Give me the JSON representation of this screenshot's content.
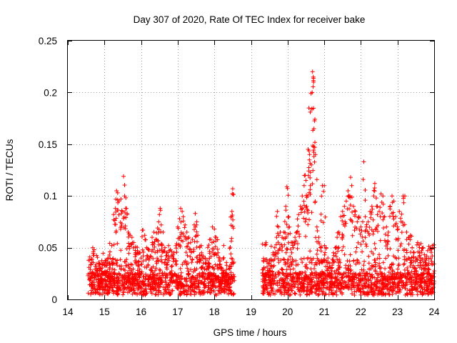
{
  "chart_data": {
    "type": "scatter",
    "title": "Day 307 of 2020, Rate Of TEC Index for receiver bake",
    "xlabel": "GPS time / hours",
    "ylabel": "ROTI / TECUs",
    "xlim": [
      14,
      24
    ],
    "ylim": [
      0,
      0.25
    ],
    "x_ticks": [
      14,
      15,
      16,
      17,
      18,
      19,
      20,
      21,
      22,
      23,
      24
    ],
    "y_ticks": [
      0,
      0.05,
      0.1,
      0.15,
      0.2,
      0.25
    ],
    "x_tick_labels": [
      "14",
      "15",
      "16",
      "17",
      "18",
      "19",
      "20",
      "21",
      "22",
      "23",
      "24"
    ],
    "y_tick_labels": [
      "0",
      "0.05",
      "0.1",
      "0.15",
      "0.2",
      "0.25"
    ],
    "grid": true,
    "marker": "+",
    "color": "#ff0000",
    "series": [
      {
        "name": "ROTI",
        "segments": [
          [
            14.55,
            18.55
          ],
          [
            19.3,
            24.0
          ]
        ],
        "points": [
          [
            14.6,
            0.041
          ],
          [
            14.65,
            0.039
          ],
          [
            14.68,
            0.05
          ],
          [
            14.72,
            0.048
          ],
          [
            14.75,
            0.032
          ],
          [
            14.8,
            0.028
          ],
          [
            14.85,
            0.036
          ],
          [
            14.9,
            0.03
          ],
          [
            14.95,
            0.034
          ],
          [
            15.0,
            0.033
          ],
          [
            15.05,
            0.038
          ],
          [
            15.1,
            0.04
          ],
          [
            15.15,
            0.046
          ],
          [
            15.2,
            0.052
          ],
          [
            15.25,
            0.082
          ],
          [
            15.3,
            0.088
          ],
          [
            15.33,
            0.105
          ],
          [
            15.36,
            0.103
          ],
          [
            15.4,
            0.095
          ],
          [
            15.45,
            0.097
          ],
          [
            15.48,
            0.085
          ],
          [
            15.52,
            0.119
          ],
          [
            15.55,
            0.1
          ],
          [
            15.58,
            0.088
          ],
          [
            15.62,
            0.083
          ],
          [
            15.65,
            0.065
          ],
          [
            15.7,
            0.062
          ],
          [
            15.75,
            0.06
          ],
          [
            15.8,
            0.055
          ],
          [
            15.85,
            0.051
          ],
          [
            15.9,
            0.047
          ],
          [
            15.95,
            0.045
          ],
          [
            16.0,
            0.04
          ],
          [
            16.05,
            0.067
          ],
          [
            16.1,
            0.062
          ],
          [
            16.15,
            0.05
          ],
          [
            16.2,
            0.048
          ],
          [
            16.25,
            0.042
          ],
          [
            16.3,
            0.06
          ],
          [
            16.35,
            0.065
          ],
          [
            16.4,
            0.058
          ],
          [
            16.45,
            0.069
          ],
          [
            16.5,
            0.082
          ],
          [
            16.52,
            0.088
          ],
          [
            16.55,
            0.072
          ],
          [
            16.6,
            0.065
          ],
          [
            16.65,
            0.05
          ],
          [
            16.7,
            0.045
          ],
          [
            16.75,
            0.052
          ],
          [
            16.8,
            0.048
          ],
          [
            16.85,
            0.042
          ],
          [
            16.9,
            0.045
          ],
          [
            16.95,
            0.052
          ],
          [
            17.0,
            0.07
          ],
          [
            17.05,
            0.078
          ],
          [
            17.08,
            0.088
          ],
          [
            17.12,
            0.085
          ],
          [
            17.15,
            0.08
          ],
          [
            17.2,
            0.072
          ],
          [
            17.25,
            0.065
          ],
          [
            17.3,
            0.06
          ],
          [
            17.35,
            0.055
          ],
          [
            17.4,
            0.058
          ],
          [
            17.45,
            0.072
          ],
          [
            17.48,
            0.083
          ],
          [
            17.52,
            0.075
          ],
          [
            17.55,
            0.062
          ],
          [
            17.6,
            0.05
          ],
          [
            17.65,
            0.045
          ],
          [
            17.7,
            0.042
          ],
          [
            17.75,
            0.04
          ],
          [
            17.8,
            0.038
          ],
          [
            17.85,
            0.035
          ],
          [
            17.9,
            0.058
          ],
          [
            17.95,
            0.07
          ],
          [
            18.0,
            0.068
          ],
          [
            18.05,
            0.06
          ],
          [
            18.1,
            0.045
          ],
          [
            18.15,
            0.038
          ],
          [
            18.2,
            0.03
          ],
          [
            18.25,
            0.028
          ],
          [
            18.3,
            0.026
          ],
          [
            18.35,
            0.024
          ],
          [
            18.4,
            0.022
          ],
          [
            18.45,
            0.044
          ],
          [
            18.47,
            0.059
          ],
          [
            18.48,
            0.085
          ],
          [
            18.49,
            0.102
          ],
          [
            18.5,
            0.107
          ],
          [
            19.35,
            0.03
          ],
          [
            19.4,
            0.025
          ],
          [
            19.45,
            0.028
          ],
          [
            19.5,
            0.035
          ],
          [
            19.55,
            0.038
          ],
          [
            19.6,
            0.045
          ],
          [
            19.65,
            0.05
          ],
          [
            19.7,
            0.06
          ],
          [
            19.72,
            0.085
          ],
          [
            19.75,
            0.07
          ],
          [
            19.8,
            0.065
          ],
          [
            19.85,
            0.06
          ],
          [
            19.9,
            0.065
          ],
          [
            19.95,
            0.09
          ],
          [
            19.98,
            0.109
          ],
          [
            20.02,
            0.08
          ],
          [
            20.05,
            0.07
          ],
          [
            20.1,
            0.055
          ],
          [
            20.15,
            0.05
          ],
          [
            20.2,
            0.06
          ],
          [
            20.25,
            0.065
          ],
          [
            20.3,
            0.082
          ],
          [
            20.35,
            0.09
          ],
          [
            20.4,
            0.1
          ],
          [
            20.45,
            0.11
          ],
          [
            20.48,
            0.12
          ],
          [
            20.5,
            0.115
          ],
          [
            20.52,
            0.09
          ],
          [
            20.55,
            0.1
          ],
          [
            20.56,
            0.145
          ],
          [
            20.58,
            0.185
          ],
          [
            20.6,
            0.14
          ],
          [
            20.62,
            0.11
          ],
          [
            20.65,
            0.13
          ],
          [
            20.67,
            0.2
          ],
          [
            20.68,
            0.22
          ],
          [
            20.7,
            0.215
          ],
          [
            20.71,
            0.21
          ],
          [
            20.72,
            0.165
          ],
          [
            20.74,
            0.147
          ],
          [
            20.76,
            0.14
          ],
          [
            20.8,
            0.07
          ],
          [
            20.85,
            0.06
          ],
          [
            20.9,
            0.05
          ],
          [
            20.95,
            0.11
          ],
          [
            21.0,
            0.11
          ],
          [
            21.05,
            0.05
          ],
          [
            21.1,
            0.04
          ],
          [
            21.15,
            0.035
          ],
          [
            21.2,
            0.03
          ],
          [
            21.25,
            0.045
          ],
          [
            21.3,
            0.05
          ],
          [
            21.35,
            0.06
          ],
          [
            21.4,
            0.065
          ],
          [
            21.45,
            0.08
          ],
          [
            21.5,
            0.085
          ],
          [
            21.55,
            0.09
          ],
          [
            21.6,
            0.095
          ],
          [
            21.65,
            0.105
          ],
          [
            21.7,
            0.1
          ],
          [
            21.72,
            0.118
          ],
          [
            21.75,
            0.11
          ],
          [
            21.8,
            0.09
          ],
          [
            21.85,
            0.085
          ],
          [
            21.9,
            0.075
          ],
          [
            21.95,
            0.08
          ],
          [
            22.0,
            0.07
          ],
          [
            22.05,
            0.075
          ],
          [
            22.08,
            0.133
          ],
          [
            22.12,
            0.08
          ],
          [
            22.15,
            0.07
          ],
          [
            22.2,
            0.075
          ],
          [
            22.25,
            0.085
          ],
          [
            22.3,
            0.09
          ],
          [
            22.35,
            0.1
          ],
          [
            22.38,
            0.112
          ],
          [
            22.42,
            0.098
          ],
          [
            22.45,
            0.09
          ],
          [
            22.5,
            0.085
          ],
          [
            22.55,
            0.102
          ],
          [
            22.6,
            0.1
          ],
          [
            22.65,
            0.08
          ],
          [
            22.7,
            0.07
          ],
          [
            22.75,
            0.065
          ],
          [
            22.8,
            0.09
          ],
          [
            22.85,
            0.1
          ],
          [
            22.9,
            0.095
          ],
          [
            22.95,
            0.08
          ],
          [
            23.0,
            0.07
          ],
          [
            23.05,
            0.085
          ],
          [
            23.1,
            0.075
          ],
          [
            23.15,
            0.1
          ],
          [
            23.2,
            0.1
          ],
          [
            23.25,
            0.065
          ],
          [
            23.3,
            0.06
          ],
          [
            23.35,
            0.062
          ],
          [
            23.4,
            0.05
          ],
          [
            23.45,
            0.045
          ],
          [
            23.5,
            0.04
          ],
          [
            23.55,
            0.055
          ],
          [
            23.6,
            0.05
          ],
          [
            23.65,
            0.045
          ],
          [
            23.7,
            0.05
          ],
          [
            23.75,
            0.04
          ],
          [
            23.8,
            0.042
          ],
          [
            23.85,
            0.035
          ],
          [
            23.9,
            0.05
          ],
          [
            23.95,
            0.052
          ],
          [
            24.0,
            0.05
          ]
        ]
      }
    ]
  }
}
